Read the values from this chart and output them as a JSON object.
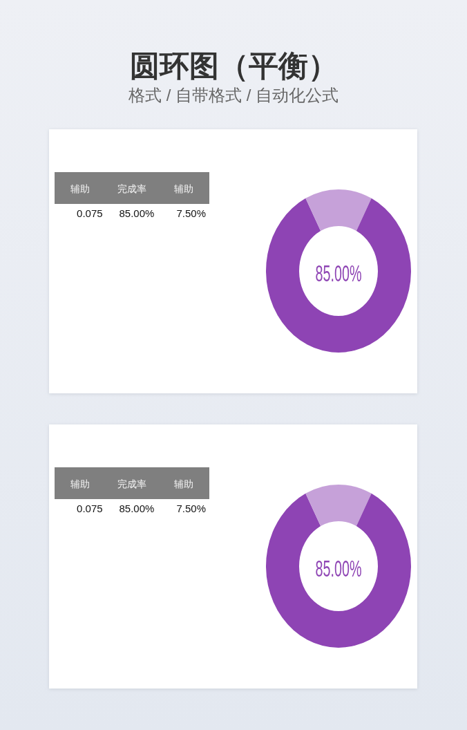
{
  "chart_data": [
    {
      "type": "other",
      "title": "圆环图（平衡）",
      "subtitle": "格式 / 自带格式 / 自动化公式",
      "categories": [
        "辅助",
        "完成率",
        "辅助"
      ],
      "annotations": [
        "0.075",
        "85.00%",
        "7.50%"
      ]
    },
    {
      "type": "donut",
      "categories": [
        null,
        null,
        null
      ],
      "values": [
        7.5,
        85,
        7.5
      ],
      "colors": [
        "#c6a1d9",
        "#8e44b4",
        "#c6a1d9"
      ],
      "annotations": [
        "85.00%"
      ]
    },
    {
      "type": "other",
      "categories": [
        "辅助",
        "完成率",
        "辅助"
      ],
      "annotations": [
        "0.075",
        "85.00%",
        "7.50%"
      ]
    },
    {
      "type": "donut",
      "categories": [
        null,
        null,
        null
      ],
      "values": [
        7.5,
        85,
        7.5
      ],
      "colors": [
        "#c6a1d9",
        "#8e44b4",
        "#c6a1d9"
      ],
      "annotations": [
        "85.00%"
      ]
    }
  ]
}
